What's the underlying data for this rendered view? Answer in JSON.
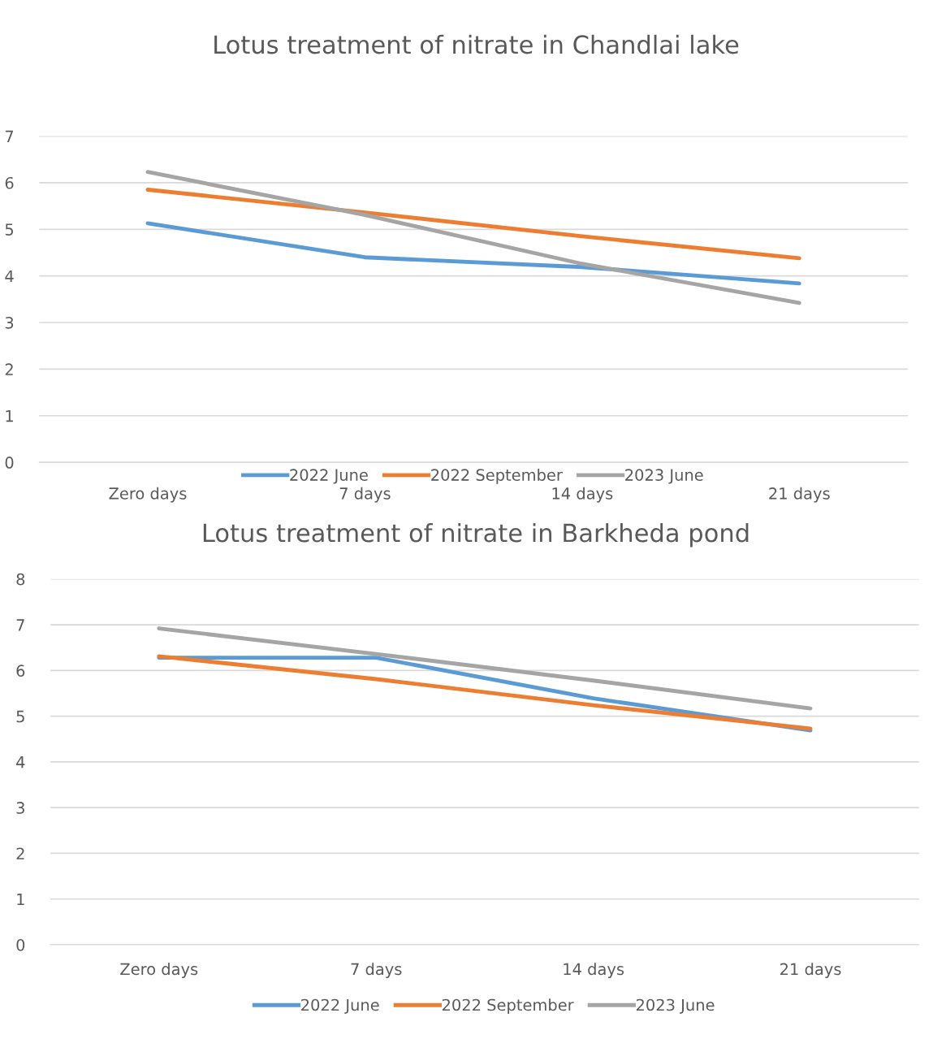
{
  "chart_data": [
    {
      "type": "line",
      "title": "Lotus treatment of nitrate in Chandlai lake",
      "categories": [
        "Zero days",
        "7 days",
        "14 days",
        "21 days"
      ],
      "ylim": [
        0,
        7
      ],
      "yticks": [
        0,
        1,
        2,
        3,
        4,
        5,
        6,
        7
      ],
      "grid": "y",
      "legend": "bottom",
      "series": [
        {
          "name": "2022 June",
          "color": "#5b9bd5",
          "values": [
            5.13,
            4.4,
            4.19,
            3.84
          ]
        },
        {
          "name": "2022 September",
          "color": "#ed7d31",
          "values": [
            5.85,
            5.36,
            4.85,
            4.38
          ]
        },
        {
          "name": "2023 June",
          "color": "#a5a5a5",
          "values": [
            6.23,
            5.31,
            4.26,
            3.42
          ]
        }
      ]
    },
    {
      "type": "line",
      "title": "Lotus treatment of nitrate in Barkheda pond",
      "categories": [
        "Zero days",
        "7 days",
        "14 days",
        "21 days"
      ],
      "ylim": [
        0,
        8
      ],
      "yticks": [
        0,
        1,
        2,
        3,
        4,
        5,
        6,
        7,
        8
      ],
      "grid": "y",
      "legend": "bottom",
      "series": [
        {
          "name": "2022 June",
          "color": "#5b9bd5",
          "values": [
            6.28,
            6.28,
            5.39,
            4.69
          ]
        },
        {
          "name": "2022 September",
          "color": "#ed7d31",
          "values": [
            6.31,
            5.81,
            5.24,
            4.73
          ]
        },
        {
          "name": "2023 June",
          "color": "#a5a5a5",
          "values": [
            6.92,
            6.36,
            5.78,
            5.17
          ]
        }
      ]
    }
  ]
}
